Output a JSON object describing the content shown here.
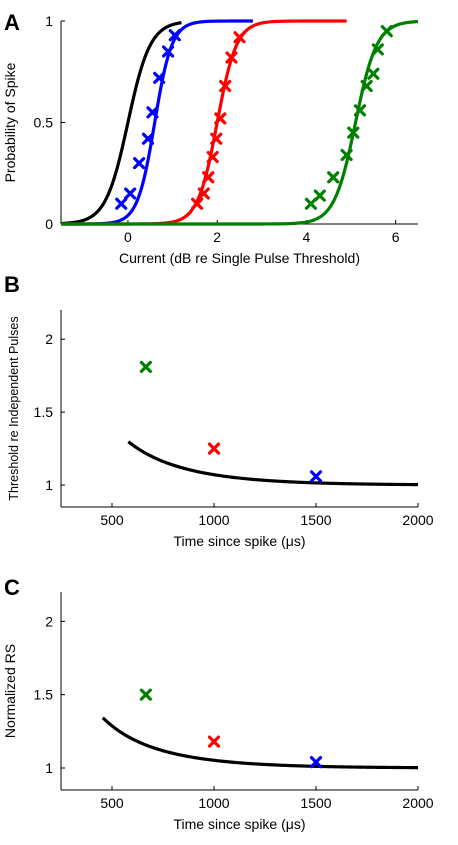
{
  "chart_data": [
    {
      "panel": "A",
      "type": "line",
      "xlabel": "Current (dB re Single Pulse Threshold)",
      "ylabel": "Probability of Spike",
      "xlim": [
        -1.5,
        6.5
      ],
      "ylim": [
        0,
        1
      ],
      "xticks": [
        0,
        2,
        4,
        6
      ],
      "yticks": [
        0,
        0.5,
        1
      ],
      "ytick_labels": [
        "0",
        "0.5",
        "1"
      ],
      "grid": false,
      "series": [
        {
          "color": "#000000",
          "curve": {
            "mid": 0.0,
            "slope": 4.0,
            "x_start": -1.5,
            "x_end": 1.2
          },
          "points": []
        },
        {
          "color": "#0000ff",
          "curve": {
            "mid": 0.6,
            "slope": 5.2,
            "x_start": -1.5,
            "x_end": 2.8
          },
          "points": [
            [
              -0.15,
              0.1
            ],
            [
              0.05,
              0.15
            ],
            [
              0.25,
              0.3
            ],
            [
              0.45,
              0.42
            ],
            [
              0.55,
              0.55
            ],
            [
              0.7,
              0.72
            ],
            [
              0.9,
              0.85
            ],
            [
              1.05,
              0.93
            ]
          ]
        },
        {
          "color": "#ff0000",
          "curve": {
            "mid": 2.0,
            "slope": 4.6,
            "x_start": -1.5,
            "x_end": 4.9
          },
          "points": [
            [
              1.55,
              0.1
            ],
            [
              1.7,
              0.15
            ],
            [
              1.8,
              0.23
            ],
            [
              1.9,
              0.33
            ],
            [
              1.98,
              0.42
            ],
            [
              2.07,
              0.52
            ],
            [
              2.18,
              0.68
            ],
            [
              2.32,
              0.82
            ],
            [
              2.5,
              0.92
            ]
          ]
        },
        {
          "color": "#008000",
          "curve": {
            "mid": 5.1,
            "slope": 4.2,
            "x_start": -1.5,
            "x_end": 6.5
          },
          "points": [
            [
              4.1,
              0.1
            ],
            [
              4.3,
              0.14
            ],
            [
              4.6,
              0.23
            ],
            [
              4.9,
              0.34
            ],
            [
              5.05,
              0.45
            ],
            [
              5.2,
              0.56
            ],
            [
              5.35,
              0.68
            ],
            [
              5.5,
              0.74
            ],
            [
              5.6,
              0.86
            ],
            [
              5.8,
              0.95
            ]
          ]
        }
      ]
    },
    {
      "panel": "B",
      "type": "line",
      "xlabel": "Time since spike (μs)",
      "ylabel": "Threshold re Independent Pulses",
      "xlim": [
        250,
        2000
      ],
      "ylim": [
        0.85,
        2.2
      ],
      "xticks": [
        500,
        1000,
        1500,
        2000
      ],
      "yticks": [
        1,
        1.5,
        2
      ],
      "ytick_labels": [
        "1",
        "1.5",
        "2"
      ],
      "grid": false,
      "curve": {
        "color": "#000000",
        "x_start": 580,
        "x_end": 2000
      },
      "points": [
        {
          "x": 666,
          "y": 1.81,
          "color": "#008000"
        },
        {
          "x": 1000,
          "y": 1.25,
          "color": "#ff0000"
        },
        {
          "x": 1500,
          "y": 1.06,
          "color": "#0000ff"
        }
      ]
    },
    {
      "panel": "C",
      "type": "line",
      "xlabel": "Time since spike (μs)",
      "ylabel": "Normalized RS",
      "xlim": [
        250,
        2000
      ],
      "ylim": [
        0.85,
        2.2
      ],
      "xticks": [
        500,
        1000,
        1500,
        2000
      ],
      "yticks": [
        1,
        1.5,
        2
      ],
      "ytick_labels": [
        "1",
        "1.5",
        "2"
      ],
      "grid": false,
      "curve": {
        "color": "#000000",
        "x_start": 455,
        "x_end": 2000
      },
      "points": [
        {
          "x": 666,
          "y": 1.5,
          "color": "#008000"
        },
        {
          "x": 1000,
          "y": 1.18,
          "color": "#ff0000"
        },
        {
          "x": 1500,
          "y": 1.04,
          "color": "#0000ff"
        }
      ]
    }
  ]
}
